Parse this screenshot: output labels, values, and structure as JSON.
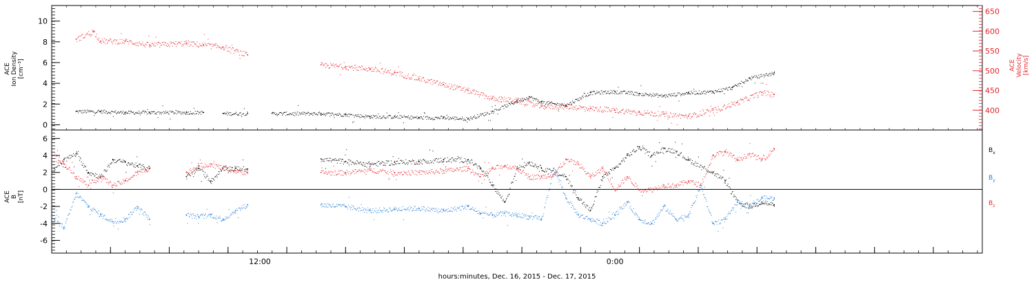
{
  "chart_data": [
    {
      "type": "scatter",
      "panel": "top",
      "ylabel_left": [
        "ACE",
        "Ion Density",
        "[cm⁻³]"
      ],
      "ylabel_right": [
        "ACE",
        "Velocity",
        "[km/s]"
      ],
      "ylim_left": [
        -0.5,
        11.5
      ],
      "ylim_right": [
        350,
        665
      ],
      "yticks_left": [
        0,
        2,
        4,
        6,
        8,
        10
      ],
      "yticks_right": [
        400,
        450,
        500,
        550,
        600,
        650
      ],
      "right_axis_color": "#e8222a",
      "series": [
        {
          "color": "#000000",
          "axis": "left",
          "x": [
            1.0,
            2.0,
            3.0,
            4.0,
            5.5,
            6.2,
            7.0,
            8.0,
            9.0,
            11.0,
            12.0,
            13.0,
            14.0,
            15.0,
            16.0,
            17.0,
            18.0,
            19.0,
            19.5,
            20.0,
            21.0,
            22.0,
            23.0,
            24.0,
            25.0,
            26.0,
            27.0,
            27.8,
            28.5,
            29.5
          ],
          "values": [
            1.3,
            1.3,
            1.2,
            1.2,
            1.2,
            1.2,
            1.1,
            1.1,
            1.1,
            1.1,
            1.0,
            0.8,
            0.8,
            0.7,
            0.7,
            0.6,
            1.3,
            2.3,
            2.7,
            2.2,
            1.9,
            3.1,
            3.2,
            3.0,
            2.8,
            3.1,
            3.2,
            3.6,
            4.5,
            5.0
          ],
          "gaps_after": [
            6.2,
            8.0
          ]
        },
        {
          "color": "#e8222a",
          "axis": "right",
          "x": [
            1.0,
            1.7,
            2.0,
            3.0,
            4.0,
            5.5,
            6.2,
            7.0,
            8.0,
            11.0,
            12.0,
            13.0,
            14.0,
            15.0,
            16.0,
            17.0,
            18.0,
            19.0,
            20.0,
            21.0,
            22.0,
            23.0,
            24.0,
            25.0,
            26.0,
            27.0,
            28.0,
            29.0,
            29.5
          ],
          "values": [
            580,
            600,
            575,
            575,
            565,
            570,
            565,
            560,
            540,
            515,
            510,
            505,
            495,
            480,
            465,
            450,
            430,
            425,
            410,
            410,
            405,
            400,
            395,
            390,
            385,
            400,
            420,
            445,
            440
          ],
          "gaps_after": [
            8.0
          ]
        }
      ]
    },
    {
      "type": "scatter",
      "panel": "bottom",
      "ylabel": [
        "ACE",
        "B",
        "[nT]"
      ],
      "ylim": [
        -7.5,
        7.0
      ],
      "yticks": [
        -6,
        -4,
        -2,
        0,
        2,
        4,
        6
      ],
      "xlim": [
        0,
        38
      ],
      "xticks": [
        "12:00",
        "0:00"
      ],
      "xtick_positions": [
        8.5,
        23.0
      ],
      "xlabel": "hours:minutes, Dec. 16, 2015 - Dec. 17, 2015",
      "legend": [
        "Bx",
        "By",
        "Bz"
      ],
      "legend_colors": [
        "#000000",
        "#1f7ad4",
        "#e8222a"
      ],
      "zero_line": true,
      "series": [
        {
          "name": "Bx",
          "color": "#000000",
          "x": [
            0.1,
            0.5,
            1.0,
            1.5,
            2.0,
            2.5,
            3.0,
            3.5,
            4.0,
            5.5,
            6.0,
            6.5,
            7.0,
            7.5,
            8.0,
            11.0,
            12.0,
            13.0,
            14.0,
            15.0,
            16.0,
            17.0,
            17.5,
            18.0,
            18.5,
            19.0,
            19.5,
            20.0,
            21.0,
            21.5,
            22.0,
            22.5,
            23.0,
            23.5,
            24.0,
            24.5,
            25.0,
            25.5,
            26.0,
            27.0,
            27.5,
            28.0,
            28.5,
            29.0,
            29.5
          ],
          "values": [
            2.5,
            3.5,
            4.2,
            2.0,
            1.5,
            3.5,
            3.2,
            2.8,
            2.5,
            1.5,
            2.5,
            1.0,
            2.5,
            2.5,
            2.4,
            3.6,
            3.3,
            3.0,
            3.2,
            3.3,
            3.5,
            3.5,
            2.5,
            0.5,
            -1.5,
            2.5,
            3.2,
            2.5,
            1.5,
            -1.0,
            -2.5,
            1.5,
            2.5,
            4.0,
            5.0,
            4.0,
            4.8,
            4.5,
            3.5,
            2.0,
            1.0,
            -1.5,
            -2.0,
            -1.5,
            -1.8
          ],
          "gaps_after": [
            4.0,
            8.0
          ]
        },
        {
          "name": "By",
          "color": "#1f7ad4",
          "x": [
            0.1,
            0.5,
            1.0,
            1.5,
            2.0,
            2.5,
            3.0,
            3.5,
            4.0,
            5.5,
            6.0,
            6.5,
            7.0,
            7.5,
            8.0,
            11.0,
            12.0,
            13.0,
            14.0,
            15.0,
            16.0,
            17.0,
            17.5,
            18.0,
            18.5,
            19.0,
            19.5,
            20.0,
            20.5,
            21.0,
            21.5,
            22.0,
            22.5,
            23.0,
            23.5,
            24.0,
            24.5,
            25.0,
            25.5,
            26.0,
            26.5,
            27.0,
            27.5,
            28.0,
            28.5,
            29.0,
            29.5
          ],
          "values": [
            -3.5,
            -4.5,
            -0.5,
            -2.0,
            -3.0,
            -3.8,
            -3.5,
            -2.0,
            -3.5,
            -3.0,
            -3.2,
            -3.0,
            -3.5,
            -2.5,
            -1.8,
            -1.8,
            -2.0,
            -2.5,
            -2.3,
            -2.2,
            -2.5,
            -2.0,
            -2.8,
            -3.0,
            -2.8,
            -3.0,
            -3.2,
            -3.5,
            2.5,
            -1.0,
            -3.0,
            -3.5,
            -4.0,
            -3.0,
            -1.5,
            -3.5,
            -4.0,
            -2.0,
            -3.5,
            -3.0,
            0.5,
            -4.0,
            -3.5,
            -1.5,
            -2.0,
            -1.0,
            -1.0
          ],
          "gaps_after": [
            4.0,
            8.0
          ]
        },
        {
          "name": "Bz",
          "color": "#e8222a",
          "x": [
            0.1,
            0.5,
            1.0,
            1.5,
            2.0,
            2.5,
            3.0,
            3.5,
            4.0,
            5.5,
            6.0,
            6.5,
            7.0,
            7.5,
            8.0,
            11.0,
            12.0,
            13.0,
            14.0,
            15.0,
            16.0,
            17.0,
            17.5,
            18.0,
            18.5,
            19.0,
            19.5,
            20.0,
            20.5,
            21.0,
            21.5,
            22.0,
            22.5,
            23.0,
            23.5,
            24.0,
            24.5,
            25.0,
            25.5,
            26.0,
            26.5,
            27.0,
            27.5,
            28.0,
            28.5,
            29.0,
            29.5
          ],
          "values": [
            4.0,
            3.0,
            1.5,
            0.5,
            1.5,
            0.5,
            1.0,
            2.0,
            2.5,
            2.0,
            2.8,
            3.0,
            2.5,
            2.2,
            2.0,
            2.0,
            2.0,
            2.3,
            2.0,
            2.0,
            2.2,
            2.5,
            1.5,
            2.5,
            2.8,
            2.5,
            1.5,
            1.5,
            1.8,
            3.5,
            3.0,
            1.5,
            2.5,
            0.0,
            1.5,
            0.0,
            0.0,
            0.5,
            0.5,
            1.0,
            0.5,
            4.0,
            4.5,
            3.5,
            4.2,
            3.5,
            4.8
          ],
          "gaps_after": [
            4.0,
            8.0
          ]
        }
      ]
    }
  ]
}
